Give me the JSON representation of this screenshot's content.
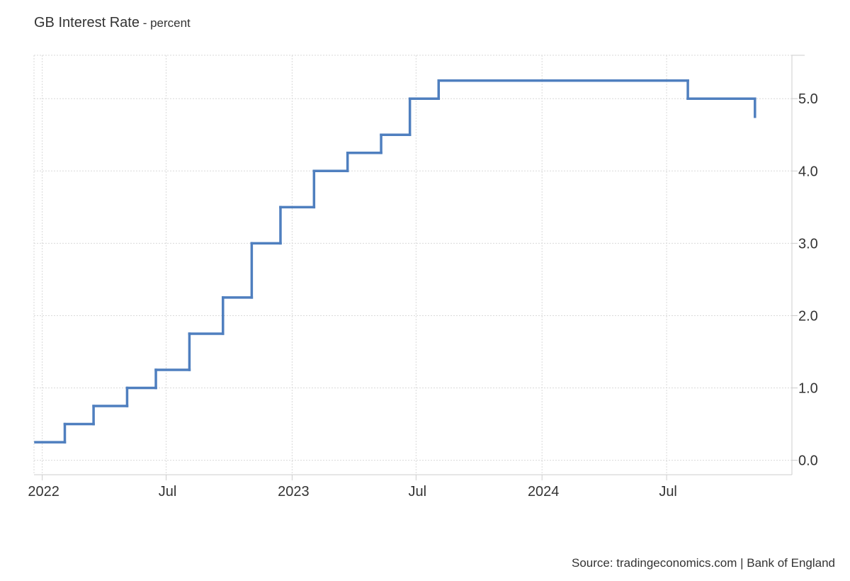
{
  "header": {
    "title": "GB Interest Rate",
    "unit_suffix": " - percent"
  },
  "footer": {
    "source": "Source: tradingeconomics.com | Bank of England"
  },
  "chart_data": {
    "type": "line",
    "step": true,
    "title": "GB Interest Rate",
    "unit": "percent",
    "ylim": [
      -0.2,
      5.6
    ],
    "y_ticks": [
      0.0,
      1.0,
      2.0,
      3.0,
      4.0,
      5.0
    ],
    "y_tick_labels": [
      "0.0",
      "1.0",
      "2.0",
      "3.0",
      "4.0",
      "5.0"
    ],
    "x_range": [
      "2021-12-20",
      "2024-12-31"
    ],
    "x_ticks": [
      "2022-01-01",
      "2022-07-01",
      "2023-01-01",
      "2023-07-01",
      "2024-01-01",
      "2024-07-01"
    ],
    "x_tick_labels": [
      "2022",
      "Jul",
      "2023",
      "Jul",
      "2024",
      "Jul"
    ],
    "grid": true,
    "axis_position": "right",
    "line_color": "#4f7fbf",
    "series": [
      {
        "points": [
          [
            "2021-12-16",
            0.25
          ],
          [
            "2022-02-03",
            0.5
          ],
          [
            "2022-03-17",
            0.75
          ],
          [
            "2022-05-05",
            1.0
          ],
          [
            "2022-06-16",
            1.25
          ],
          [
            "2022-08-04",
            1.75
          ],
          [
            "2022-09-22",
            2.25
          ],
          [
            "2022-11-03",
            3.0
          ],
          [
            "2022-12-15",
            3.5
          ],
          [
            "2023-02-02",
            4.0
          ],
          [
            "2023-03-23",
            4.25
          ],
          [
            "2023-05-11",
            4.5
          ],
          [
            "2023-06-22",
            5.0
          ],
          [
            "2023-08-03",
            5.25
          ],
          [
            "2024-08-01",
            5.0
          ],
          [
            "2024-11-07",
            4.75
          ]
        ],
        "end_date": "2024-11-07"
      }
    ]
  }
}
